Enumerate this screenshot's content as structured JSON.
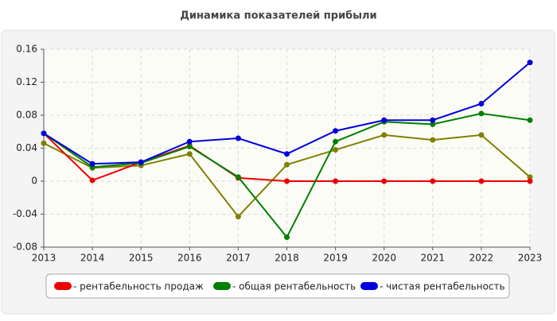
{
  "chart_data": {
    "type": "line",
    "title": "Динамика показателей прибыли",
    "x": [
      2013,
      2014,
      2015,
      2016,
      2017,
      2018,
      2019,
      2020,
      2021,
      2022,
      2023
    ],
    "series": [
      {
        "name": "- рентабельность продаж",
        "color": "#ee0000",
        "values": [
          0.058,
          0.001,
          0.023,
          0.043,
          0.004,
          0,
          0,
          0,
          0,
          0,
          0
        ]
      },
      {
        "name": "- общая рентабельность",
        "color": "#008000",
        "values": [
          0.058,
          0.017,
          0.022,
          0.042,
          0.005,
          -0.068,
          0.048,
          0.072,
          0.069,
          0.082,
          0.074
        ]
      },
      {
        "name": "- чистая рентабельность",
        "color": "#0000dd",
        "values": [
          0.058,
          0.021,
          0.023,
          0.048,
          0.052,
          0.033,
          0.061,
          0.074,
          0.074,
          0.094,
          0.144
        ]
      },
      {
        "color": "#808000",
        "values": [
          0.046,
          0.016,
          0.019,
          0.033,
          -0.043,
          0.02,
          0.038,
          0.056,
          0.05,
          0.056,
          0.005
        ]
      }
    ],
    "xlim": [
      2013,
      2023
    ],
    "xticks": [
      2013,
      2014,
      2015,
      2016,
      2017,
      2018,
      2019,
      2020,
      2021,
      2022,
      2023
    ],
    "ylim": [
      -0.08,
      0.16
    ],
    "yticks": [
      0.16,
      0.12,
      0.08,
      0.04,
      0,
      -0.04,
      -0.08
    ],
    "grid": true
  }
}
